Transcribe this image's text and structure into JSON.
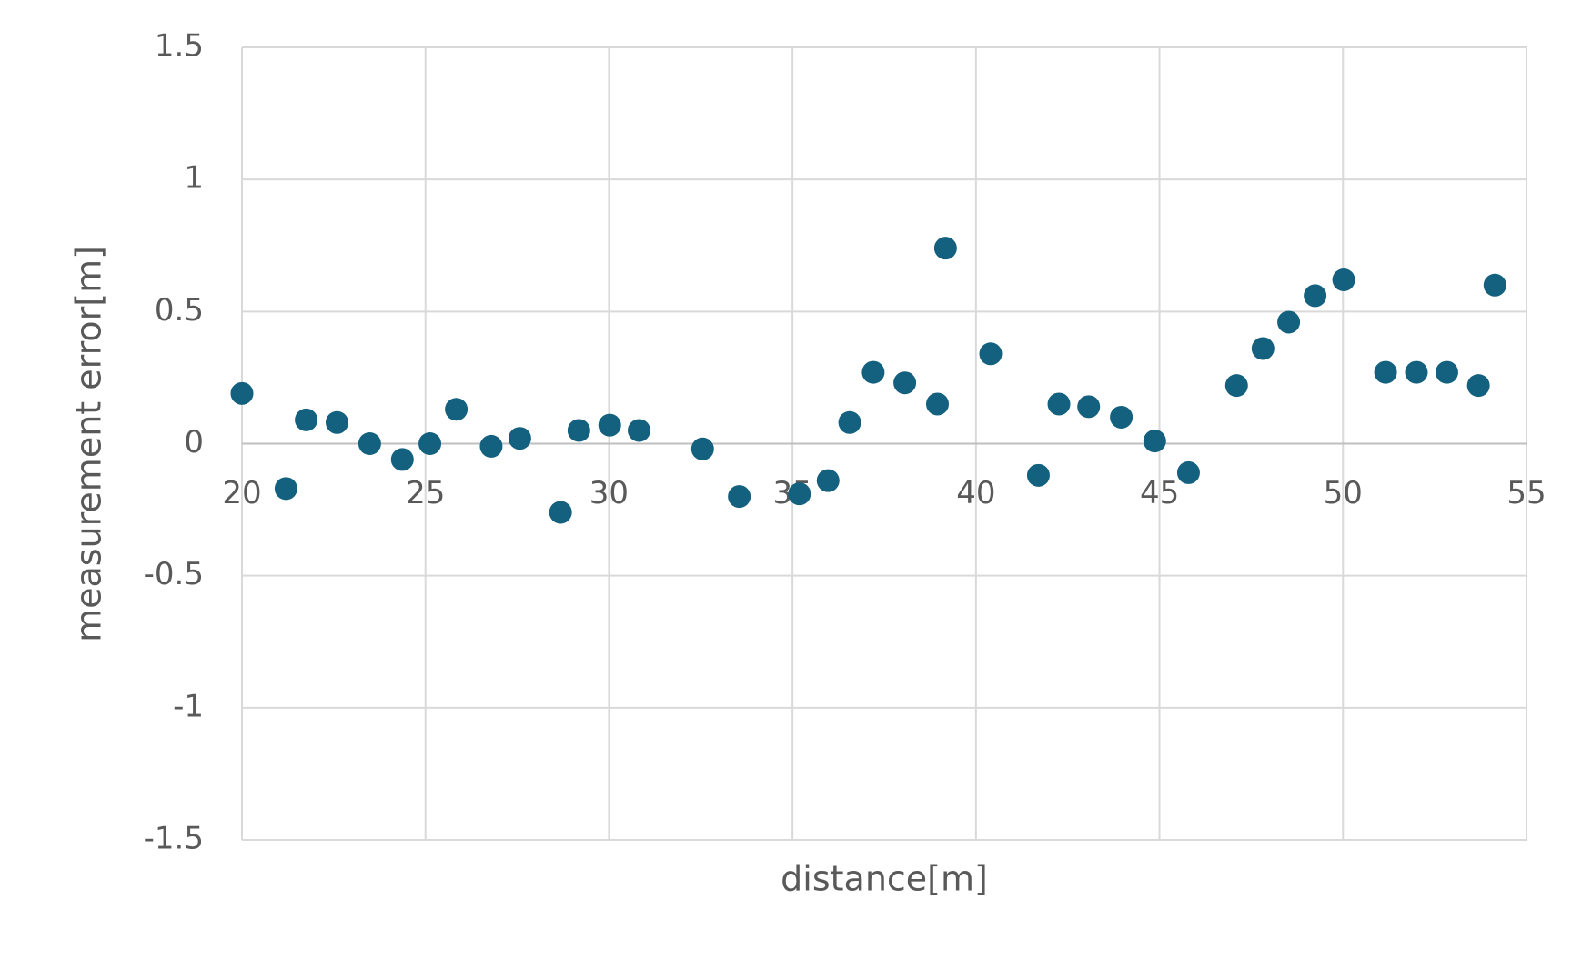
{
  "chart_data": {
    "type": "scatter",
    "x_label": "distance[m]",
    "y_label": "measurement error[m]",
    "x": [
      20,
      21.2,
      21.75,
      22.59,
      23.48,
      24.37,
      25.12,
      25.84,
      26.79,
      27.57,
      28.68,
      29.18,
      30.02,
      30.82,
      32.55,
      33.55,
      35.19,
      35.97,
      36.56,
      37.2,
      38.06,
      38.95,
      39.17,
      40.4,
      41.7,
      42.26,
      43.07,
      43.96,
      44.87,
      45.79,
      47.1,
      47.82,
      48.52,
      49.24,
      50.02,
      51.16,
      52.0,
      52.83,
      53.69,
      54.14
    ],
    "series": [
      {
        "color": "#14607f",
        "values": [
          0.19,
          -0.17,
          0.09,
          0.08,
          0.0,
          -0.06,
          0.0,
          0.13,
          -0.01,
          0.02,
          -0.26,
          0.05,
          0.07,
          0.05,
          -0.02,
          -0.2,
          -0.19,
          -0.14,
          0.08,
          0.27,
          0.23,
          0.15,
          0.74,
          0.34,
          -0.12,
          0.15,
          0.14,
          0.1,
          0.01,
          -0.11,
          0.22,
          0.36,
          0.46,
          0.56,
          0.62,
          0.27,
          0.27,
          0.27,
          0.22,
          0.6
        ]
      }
    ],
    "xlim": [
      20,
      55
    ],
    "xticks": [
      20,
      25,
      30,
      35,
      40,
      45,
      50,
      55
    ],
    "ylim": [
      -1.5,
      1.5
    ],
    "yticks": [
      -1.5,
      -1,
      -0.5,
      0,
      0.5,
      1,
      1.5
    ],
    "grid": true
  }
}
